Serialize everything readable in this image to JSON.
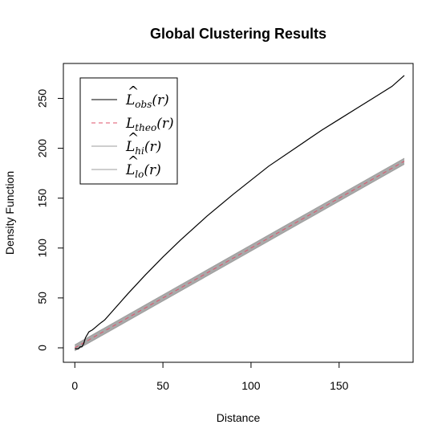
{
  "chart_data": {
    "type": "line",
    "title": "Global Clustering Results",
    "xlabel": "Distance",
    "ylabel": "Density Function",
    "xlim": [
      -6.5,
      192
    ],
    "ylim": [
      -14.5,
      285
    ],
    "xticks": [
      0,
      50,
      100,
      150
    ],
    "yticks": [
      0,
      50,
      100,
      150,
      200,
      250
    ],
    "grid": false,
    "legend_position": "top-left",
    "series": [
      {
        "name": "obs",
        "color": "#000000",
        "dash": "solid",
        "x": [
          0,
          2,
          3,
          4,
          5,
          6,
          8,
          10,
          12,
          14,
          17,
          20,
          25,
          30,
          40,
          50,
          60,
          75,
          90,
          100,
          110,
          125,
          140,
          150,
          160,
          170,
          180,
          187
        ],
        "y": [
          -1,
          -1,
          1,
          1,
          4,
          10,
          16,
          18,
          21,
          24,
          28,
          34,
          44,
          54,
          73,
          91,
          108,
          132,
          154,
          168,
          182,
          200,
          218,
          229,
          240,
          251,
          262,
          273
        ]
      },
      {
        "name": "theo",
        "color": "#DF536B",
        "dash": "dashed",
        "x": [
          0,
          187
        ],
        "y": [
          0,
          187
        ]
      },
      {
        "name": "hi",
        "color": "#9E9E9E",
        "dash": "solid",
        "x": [
          0,
          187
        ],
        "y": [
          3,
          190
        ]
      },
      {
        "name": "lo",
        "color": "#9E9E9E",
        "dash": "solid",
        "x": [
          0,
          187
        ],
        "y": [
          -3,
          184
        ]
      }
    ],
    "legend": [
      {
        "main": "L",
        "hat": "^",
        "sub": "obs",
        "arg": "(r)",
        "color": "#000000",
        "dash": "solid"
      },
      {
        "main": "L",
        "hat": "",
        "sub": "theo",
        "arg": "(r)",
        "color": "#DF536B",
        "dash": "dashed"
      },
      {
        "main": "L",
        "hat": "^",
        "sub": "hi",
        "arg": "(r)",
        "color": "#9E9E9E",
        "dash": "solid"
      },
      {
        "main": "L",
        "hat": "^",
        "sub": "lo",
        "arg": "(r)",
        "color": "#9E9E9E",
        "dash": "solid"
      }
    ]
  }
}
